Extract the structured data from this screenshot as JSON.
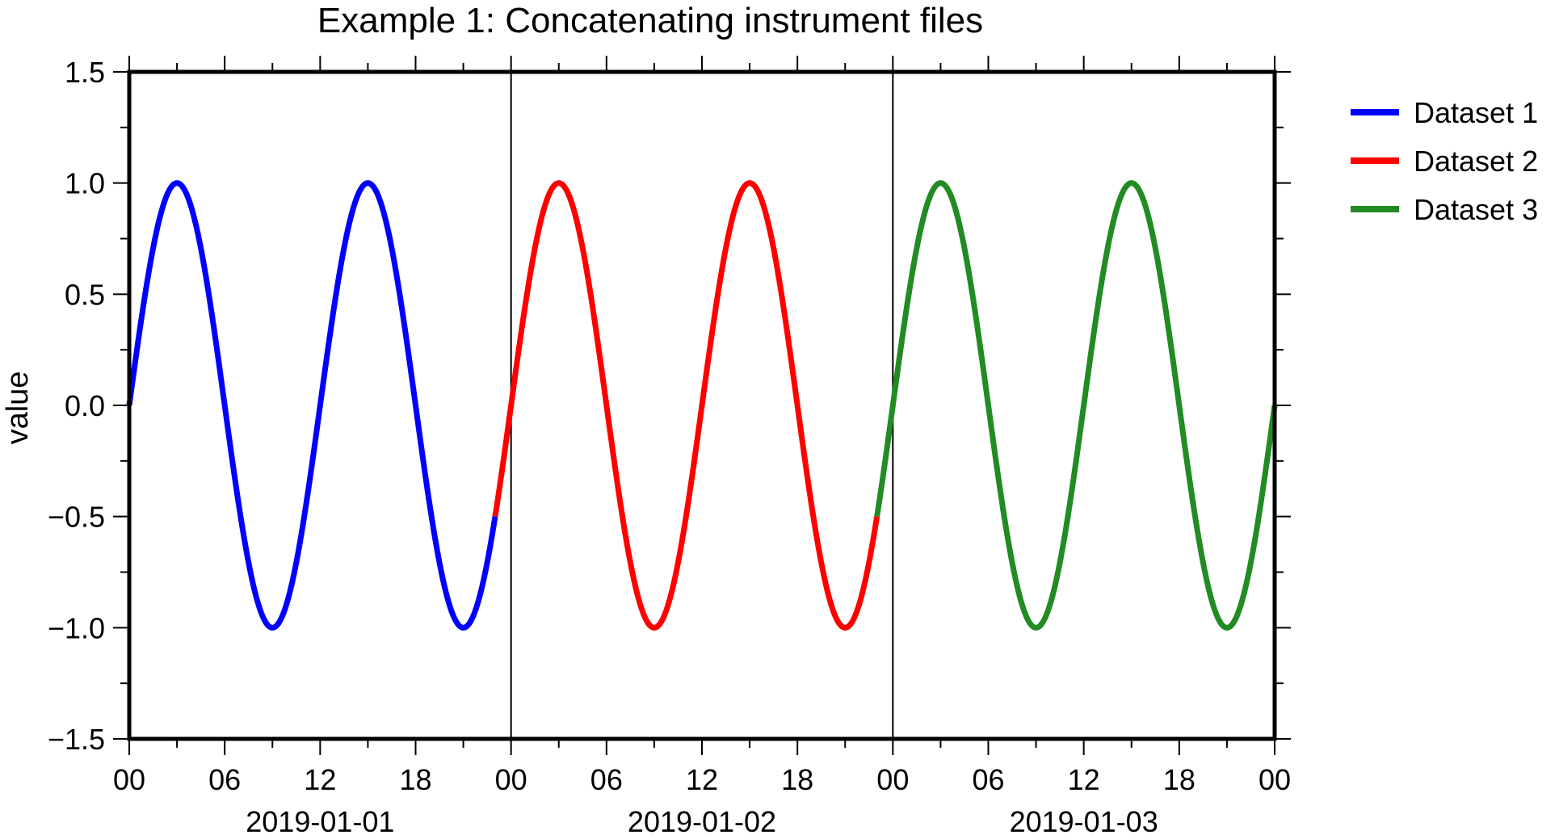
{
  "chart_data": {
    "type": "line",
    "title": "Example 1: Concatenating instrument files",
    "xlabel": "",
    "ylabel": "value",
    "x_range": [
      "2019-01-01T00:00",
      "2019-01-04T00:00"
    ],
    "x_tick_hours": [
      "00",
      "06",
      "12",
      "18",
      "00",
      "06",
      "12",
      "18",
      "00",
      "06",
      "12",
      "18",
      "00"
    ],
    "x_date_labels": [
      "2019-01-01",
      "2019-01-02",
      "2019-01-03"
    ],
    "ylim": [
      -1.5,
      1.5
    ],
    "y_ticks": [
      "1.5",
      "1.0",
      "0.5",
      "0.0",
      "−0.5",
      "−1.0",
      "−1.5"
    ],
    "day_separators": [
      "2019-01-02T00:00",
      "2019-01-03T00:00"
    ],
    "legend_position": "outside-right",
    "grid": false,
    "function": "y = sin(2π·t / 12h)",
    "series": [
      {
        "name": "Dataset 1",
        "color": "#0000ff",
        "x": [
          "2019-01-01T00:00",
          "2019-01-01T23:00"
        ],
        "period_hours": 12,
        "amplitude": 1.0
      },
      {
        "name": "Dataset 2",
        "color": "#ff0000",
        "x": [
          "2019-01-01T23:00",
          "2019-01-02T23:00"
        ],
        "period_hours": 12,
        "amplitude": 1.0
      },
      {
        "name": "Dataset 3",
        "color": "#228b22",
        "x": [
          "2019-01-02T23:00",
          "2019-01-04T00:00"
        ],
        "period_hours": 12,
        "amplitude": 1.0
      }
    ]
  }
}
